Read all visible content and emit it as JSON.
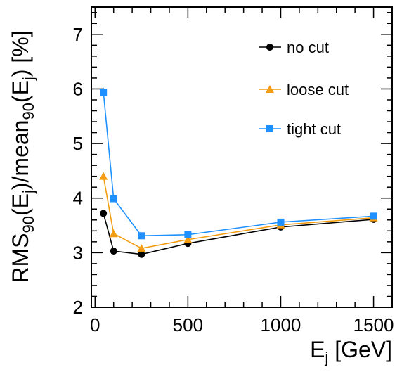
{
  "chart_data": {
    "type": "line",
    "xlabel": {
      "base": "E",
      "sub": "j",
      "rest": " [GeV]"
    },
    "ylabel": {
      "parts": [
        {
          "t": "RMS",
          "s": "n"
        },
        {
          "t": "90",
          "s": "sub"
        },
        {
          "t": "(E",
          "s": "n"
        },
        {
          "t": "j",
          "s": "sub"
        },
        {
          "t": ")/mean",
          "s": "n"
        },
        {
          "t": "90",
          "s": "sub"
        },
        {
          "t": "(E",
          "s": "n"
        },
        {
          "t": "j",
          "s": "sub"
        },
        {
          "t": ") [%]",
          "s": "n"
        }
      ]
    },
    "xlim": [
      -20,
      1600
    ],
    "ylim": [
      2,
      7.5
    ],
    "xticks": [
      0,
      500,
      1000,
      1500
    ],
    "xtick_labels": [
      "0",
      "500",
      "1000",
      "1500"
    ],
    "yticks": [
      2,
      3,
      4,
      5,
      6,
      7
    ],
    "ytick_labels": [
      "2",
      "3",
      "4",
      "5",
      "6",
      "7"
    ],
    "x": [
      45,
      100,
      250,
      500,
      1000,
      1500
    ],
    "series": [
      {
        "name": "no cut",
        "color": "#000000",
        "marker": "circle",
        "values": [
          3.72,
          3.03,
          2.97,
          3.17,
          3.47,
          3.61
        ],
        "errors": [
          0.04,
          0.02,
          0.02,
          0.02,
          0.02,
          0.02
        ]
      },
      {
        "name": "loose cut",
        "color": "#f39c12",
        "marker": "triangle",
        "values": [
          4.4,
          3.35,
          3.08,
          3.24,
          3.51,
          3.64
        ],
        "errors": [
          0.05,
          0.02,
          0.02,
          0.02,
          0.02,
          0.02
        ]
      },
      {
        "name": "tight cut",
        "color": "#1e90ff",
        "marker": "square",
        "values": [
          5.94,
          3.99,
          3.31,
          3.33,
          3.56,
          3.67
        ],
        "errors": [
          0.08,
          0.03,
          0.02,
          0.02,
          0.02,
          0.02
        ]
      }
    ],
    "legend": "top-right",
    "grid": false
  }
}
